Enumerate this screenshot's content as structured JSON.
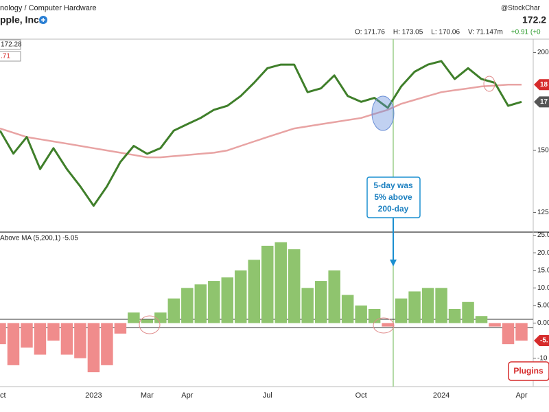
{
  "header": {
    "sector": "nology / Computer Hardware",
    "name": "pple, Inc.",
    "brand": "@StockChar",
    "last": "172.2",
    "ohlc": [
      "O: 171.76",
      "H: 173.05",
      "L: 170.06",
      "V: 71.147m"
    ],
    "change": "+0.91 (+0"
  },
  "chart_data": [
    {
      "type": "line",
      "log_scale": true,
      "ylim": [
        118,
        208
      ],
      "yticks": [
        125,
        150,
        200
      ],
      "left_tags": [
        {
          "label": "172.28",
          "color": "#222222"
        },
        {
          "label": ".71",
          "color": "#d62b2b"
        }
      ],
      "right_tags": [
        {
          "label": "18",
          "color": "#d62b2b"
        },
        {
          "label": "17",
          "color": "#555555"
        }
      ],
      "series": [
        {
          "name": "5-day",
          "color": "#3f7f2a",
          "values": [
            159,
            148.6,
            156,
            142,
            151,
            142,
            135,
            127.5,
            135,
            145,
            152,
            148.5,
            151,
            159,
            162,
            165,
            169,
            171,
            176,
            183,
            191,
            193,
            193,
            178,
            180,
            187,
            176,
            173,
            175,
            170,
            181,
            189,
            193,
            195,
            185,
            191,
            185,
            183,
            171,
            173
          ]
        },
        {
          "name": "200-day",
          "color": "#e8a3a3",
          "values": [
            160,
            158,
            156,
            155,
            154,
            153,
            152,
            151,
            150,
            149,
            148,
            147,
            147,
            147.5,
            148,
            148.5,
            149,
            150,
            152,
            154,
            156,
            158,
            160,
            161,
            162,
            163,
            164,
            165,
            167,
            169,
            172,
            174,
            176,
            178,
            179,
            180,
            181,
            181.5,
            182,
            182
          ]
        }
      ]
    },
    {
      "type": "bar",
      "title": "Above MA (5,200,1) -5.05",
      "ylim": [
        -17.5,
        25.5
      ],
      "yticks": [
        {
          "value": 25,
          "label": "25.00"
        },
        {
          "value": 20,
          "label": "20.0"
        },
        {
          "value": 15,
          "label": "15.0"
        },
        {
          "value": 10,
          "label": "10.0"
        },
        {
          "value": 5,
          "label": "5.00"
        },
        {
          "value": 0,
          "label": "0.00"
        },
        -10
      ],
      "positive_color": "#8fc46e",
      "negative_color": "#f08c8c",
      "last_tag": "-5.",
      "categories": [
        "Oct",
        null,
        null,
        null,
        null,
        null,
        null,
        "2023",
        null,
        null,
        null,
        "Mar",
        null,
        null,
        "Apr",
        null,
        null,
        null,
        null,
        null,
        "Jul",
        null,
        null,
        null,
        null,
        null,
        null,
        "Oct",
        null,
        null,
        null,
        null,
        null,
        "2024",
        null,
        null,
        null,
        null,
        null,
        "Apr"
      ],
      "values": [
        -6,
        -12,
        -7,
        -9,
        -5,
        -9,
        -10,
        -14,
        -12,
        -3,
        3,
        1,
        3,
        7,
        10,
        11,
        12,
        13,
        15,
        18,
        22,
        23,
        21,
        10,
        12,
        15,
        8,
        5,
        4,
        -1,
        7,
        9,
        10,
        10,
        4,
        6,
        2,
        -1,
        -6,
        -5
      ]
    }
  ],
  "annotation": [
    "5-day was",
    "5% above",
    "200-day"
  ],
  "button": "Plugins"
}
